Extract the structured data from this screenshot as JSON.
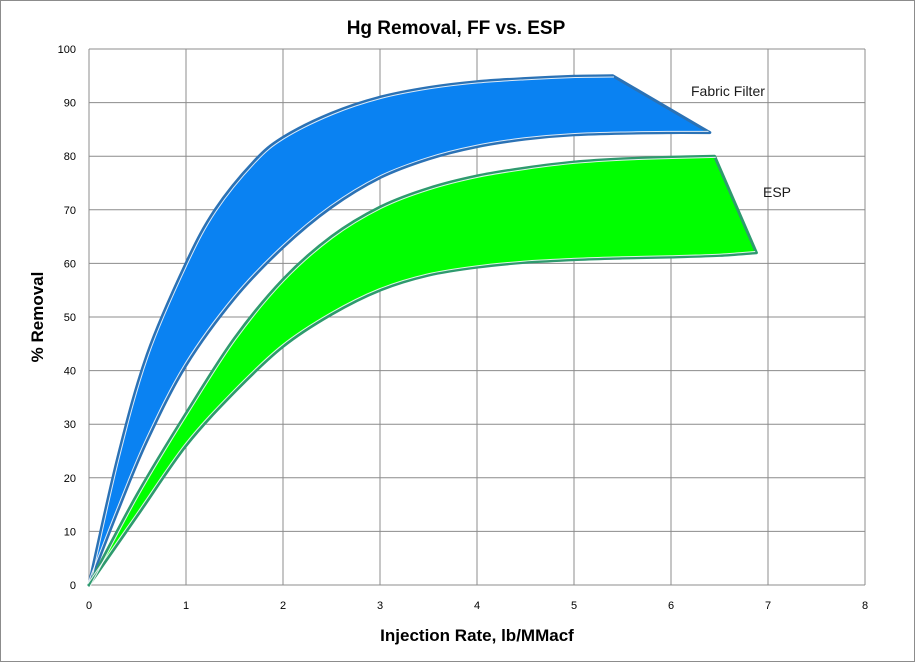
{
  "chart_data": {
    "type": "area",
    "title": "Hg Removal, FF vs. ESP",
    "xlabel": "Injection Rate, lb/MMacf",
    "ylabel": "% Removal",
    "xlim": [
      0,
      8
    ],
    "ylim": [
      0,
      100
    ],
    "xticks": [
      0,
      1,
      2,
      3,
      4,
      5,
      6,
      7,
      8
    ],
    "yticks": [
      0,
      10,
      20,
      30,
      40,
      50,
      60,
      70,
      80,
      90,
      100
    ],
    "grid": true,
    "legend": "none",
    "series": [
      {
        "name": "Fabric Filter",
        "label": "Fabric Filter",
        "fill": "#0a82f2",
        "stroke": "#2b72b5",
        "upper": {
          "x": [
            0,
            0.3,
            0.6,
            1.0,
            1.3,
            1.7,
            2.0,
            2.5,
            3.0,
            3.5,
            4.0,
            4.5,
            5.0,
            5.4
          ],
          "y": [
            0,
            24,
            43,
            60,
            70,
            79,
            83.5,
            88,
            91,
            92.8,
            93.9,
            94.5,
            94.9,
            95
          ]
        },
        "lower": {
          "x": [
            0,
            0.3,
            0.6,
            1.0,
            1.5,
            2.0,
            2.5,
            3.0,
            3.5,
            4.0,
            4.5,
            5.0,
            5.5,
            6.0,
            6.4
          ],
          "y": [
            0,
            14,
            27,
            41,
            53.5,
            63,
            70.5,
            76,
            79.5,
            81.8,
            83.2,
            84,
            84.3,
            84.4,
            84.4
          ]
        }
      },
      {
        "name": "ESP",
        "label": "ESP",
        "fill": "#00ff00",
        "stroke": "#2e9a6e",
        "upper": {
          "x": [
            0,
            0.5,
            1.0,
            1.5,
            2.0,
            2.5,
            3.0,
            3.5,
            4.0,
            4.5,
            5.0,
            5.5,
            6.0,
            6.45
          ],
          "y": [
            0,
            17,
            32,
            46,
            57,
            65,
            70.5,
            74,
            76.3,
            77.8,
            78.9,
            79.5,
            79.8,
            80
          ]
        },
        "lower": {
          "x": [
            0,
            0.5,
            1.0,
            1.5,
            2.0,
            2.5,
            3.0,
            3.5,
            4.0,
            4.5,
            5.0,
            5.5,
            6.0,
            6.5,
            6.88
          ],
          "y": [
            0,
            13,
            26,
            36,
            44.5,
            50.5,
            55,
            57.8,
            59.3,
            60.2,
            60.7,
            61,
            61.2,
            61.5,
            62
          ]
        }
      }
    ]
  }
}
